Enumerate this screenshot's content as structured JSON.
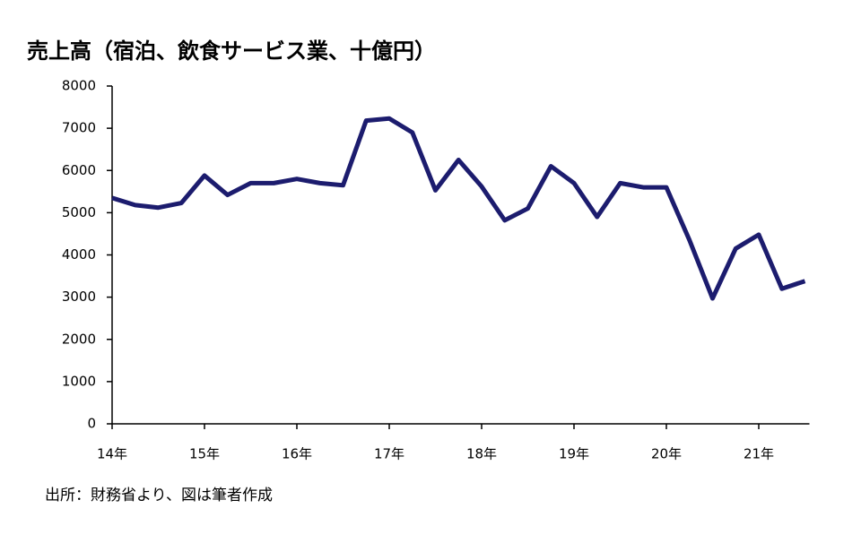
{
  "chart_data": {
    "type": "line",
    "title": "売上高（宿泊、飲食サービス業、十億円）",
    "source": "出所：財務省より、図は筆者作成",
    "categories": [
      "14年",
      null,
      null,
      null,
      "15年",
      null,
      null,
      null,
      "16年",
      null,
      null,
      null,
      "17年",
      null,
      null,
      null,
      "18年",
      null,
      null,
      null,
      "19年",
      null,
      null,
      null,
      "20年",
      null,
      null,
      null,
      "21年",
      null,
      null
    ],
    "series": [
      {
        "name": "売上高",
        "color": "#1c1c6e",
        "values": [
          5350,
          5180,
          5120,
          5230,
          5880,
          5420,
          5700,
          5700,
          5800,
          5700,
          5650,
          7180,
          7230,
          6900,
          5530,
          6250,
          5620,
          4820,
          5100,
          6100,
          5700,
          4900,
          5700,
          5600,
          5600,
          4350,
          2970,
          4150,
          4480,
          3200,
          3380
        ]
      }
    ],
    "ylim": [
      0,
      8000
    ],
    "yticks": [
      0,
      1000,
      2000,
      3000,
      4000,
      5000,
      6000,
      7000,
      8000
    ],
    "grid": false
  }
}
